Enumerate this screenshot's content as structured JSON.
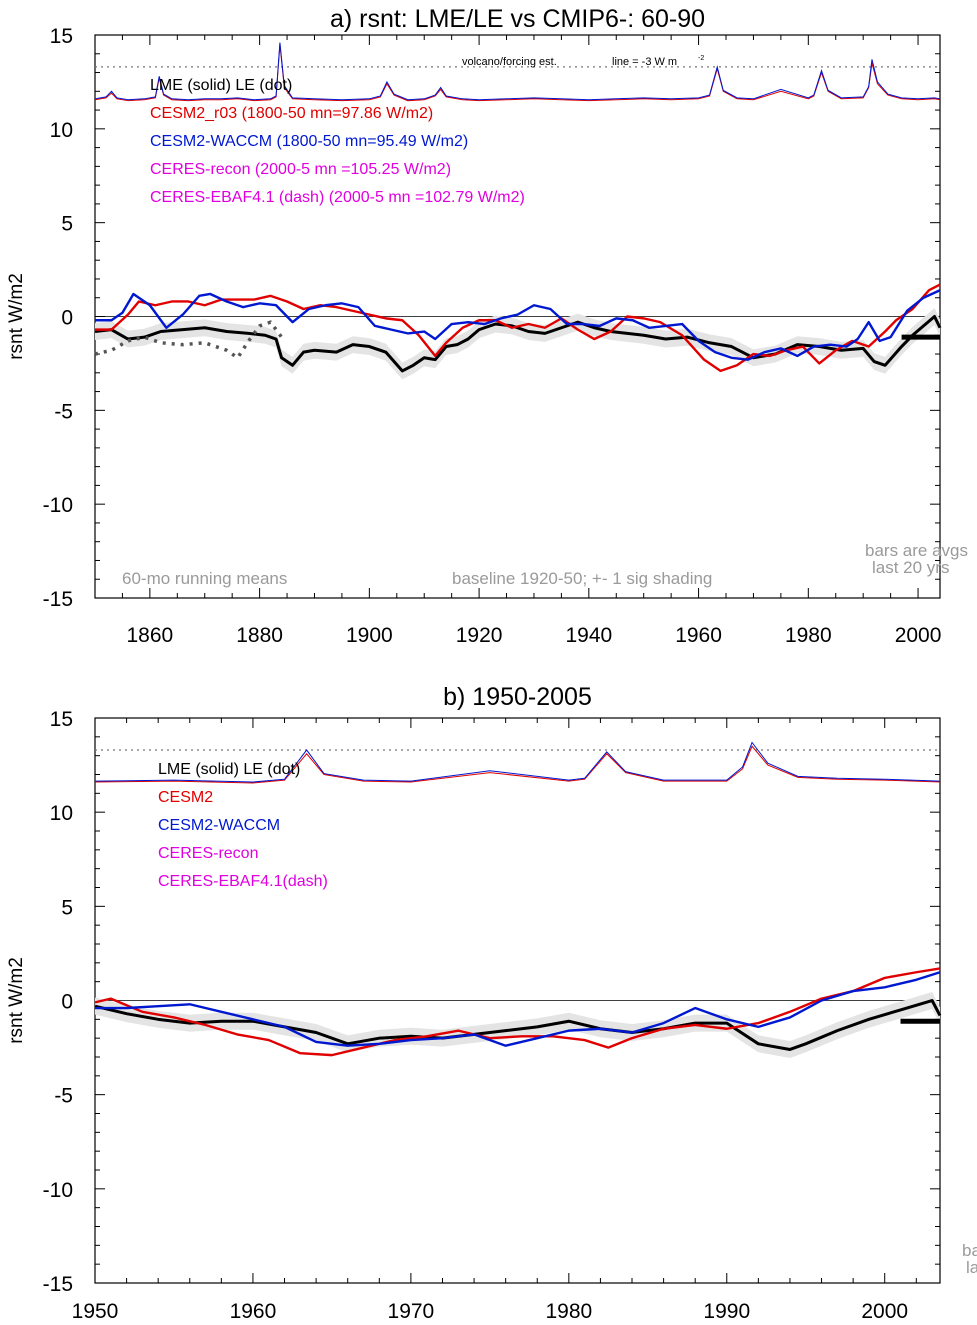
{
  "chart_data": [
    {
      "type": "line",
      "title": "a) rsnt: LME/LE vs CMIP6-: 60-90",
      "ylabel": "rsnt W/m2",
      "xlim": [
        1850,
        2004
      ],
      "ylim": [
        -15,
        15
      ],
      "x_ticks": [
        1860,
        1880,
        1900,
        1920,
        1940,
        1960,
        1980,
        2000
      ],
      "y_ticks": [
        15,
        10,
        5,
        0,
        -5,
        -10,
        -15
      ],
      "grid": false,
      "legend": [
        {
          "text": "LME (solid)    LE (dot)",
          "color": "#000000"
        },
        {
          "text": "CESM2_r03 (1800-50 mn=97.86 W/m2)",
          "color": "#e00000"
        },
        {
          "text": "CESM2-WACCM (1800-50 mn=95.49 W/m2)",
          "color": "#0018d0"
        },
        {
          "text": "CERES-recon (2000-5 mn =105.25 W/m2)",
          "color": "#e000e0"
        },
        {
          "text": "CERES-EBAF4.1 (dash) (2000-5 mn =102.79 W/m2)",
          "color": "#e000e0"
        }
      ],
      "annotations": {
        "volcano": "volcano/forcing est.",
        "line_note": "line = -3 W m",
        "line_note_sup": "-2",
        "running": "60-mo running means",
        "baseline": "baseline 1920-50; +- 1 sig shading",
        "bars1": "bars are avgs",
        "bars2": "last 20 yrs"
      },
      "reference_levels": {
        "zero": 0,
        "volcano_line": 13.3
      },
      "bar": {
        "x": [
          1997,
          2004
        ],
        "y": -1.1
      },
      "series": [
        {
          "name": "LME (solid)",
          "color": "#000000",
          "x": [
            1850,
            1853,
            1856,
            1859,
            1862,
            1866,
            1870,
            1874,
            1878,
            1881,
            1883,
            1884,
            1886,
            1888,
            1890,
            1894,
            1897,
            1900,
            1903,
            1906,
            1908,
            1910,
            1912,
            1914,
            1916,
            1918,
            1920,
            1923,
            1926,
            1929,
            1932,
            1935,
            1938,
            1941,
            1944,
            1947,
            1950,
            1954,
            1958,
            1962,
            1966,
            1970,
            1974,
            1978,
            1982,
            1986,
            1990,
            1992,
            1994,
            1997,
            1999,
            2001,
            2003,
            2004
          ],
          "y": [
            -0.8,
            -0.7,
            -1.2,
            -1.1,
            -0.8,
            -0.7,
            -0.6,
            -0.8,
            -0.9,
            -1.0,
            -1.2,
            -2.2,
            -2.6,
            -1.9,
            -1.8,
            -1.9,
            -1.5,
            -1.6,
            -1.9,
            -2.9,
            -2.6,
            -2.2,
            -2.3,
            -1.6,
            -1.5,
            -1.2,
            -0.7,
            -0.4,
            -0.5,
            -0.8,
            -0.9,
            -0.6,
            -0.3,
            -0.6,
            -0.8,
            -0.9,
            -1.0,
            -1.2,
            -1.1,
            -1.4,
            -1.6,
            -2.2,
            -2.0,
            -1.5,
            -1.6,
            -1.8,
            -1.7,
            -2.4,
            -2.6,
            -1.6,
            -1.0,
            -0.5,
            0.0,
            -0.6
          ]
        },
        {
          "name": "LE (dot)",
          "color": "#555555",
          "x": [
            1850,
            1853,
            1856,
            1859,
            1862,
            1866,
            1870,
            1874,
            1876,
            1878,
            1880,
            1882,
            1884
          ],
          "y": [
            -2.0,
            -1.8,
            -1.3,
            -1.1,
            -1.4,
            -1.5,
            -1.4,
            -1.8,
            -2.2,
            -1.3,
            -0.5,
            -0.3,
            -1.1
          ]
        },
        {
          "name": "CESM2_r03",
          "color": "#e00000",
          "x": [
            1850,
            1853,
            1856,
            1858,
            1861,
            1864,
            1867,
            1870,
            1873,
            1876,
            1879,
            1882,
            1885,
            1888,
            1891,
            1894,
            1897,
            1900,
            1903,
            1906,
            1909,
            1912,
            1914,
            1917,
            1920,
            1923,
            1926,
            1929,
            1932,
            1935,
            1938,
            1941,
            1944,
            1947,
            1950,
            1953,
            1957,
            1961,
            1964,
            1967,
            1970,
            1973,
            1976,
            1979,
            1982,
            1985,
            1988,
            1991,
            1994,
            1996,
            1999,
            2002,
            2004
          ],
          "y": [
            -0.7,
            -0.7,
            0.1,
            0.8,
            0.6,
            0.8,
            0.8,
            0.6,
            0.9,
            0.9,
            0.9,
            1.1,
            0.8,
            0.4,
            0.6,
            0.5,
            0.3,
            0.1,
            -0.1,
            -0.2,
            -1.0,
            -2.1,
            -1.4,
            -0.6,
            -0.2,
            -0.2,
            -0.6,
            -0.4,
            -0.6,
            -0.1,
            -0.7,
            -1.2,
            -0.8,
            0.0,
            -0.1,
            -0.3,
            -1.0,
            -2.3,
            -2.9,
            -2.6,
            -2.0,
            -2.1,
            -1.8,
            -1.6,
            -2.5,
            -1.8,
            -1.3,
            -1.6,
            -0.8,
            -0.2,
            0.4,
            1.4,
            1.7
          ]
        },
        {
          "name": "CESM2-WACCM",
          "color": "#0018d0",
          "x": [
            1850,
            1853,
            1855,
            1857,
            1860,
            1863,
            1866,
            1869,
            1871,
            1874,
            1877,
            1880,
            1883,
            1886,
            1889,
            1892,
            1895,
            1898,
            1901,
            1904,
            1907,
            1910,
            1912,
            1915,
            1918,
            1921,
            1924,
            1927,
            1930,
            1933,
            1936,
            1939,
            1942,
            1945,
            1948,
            1951,
            1954,
            1957,
            1960,
            1963,
            1966,
            1969,
            1972,
            1975,
            1978,
            1981,
            1984,
            1987,
            1989,
            1991,
            1993,
            1995,
            1998,
            2001,
            2004
          ],
          "y": [
            -0.2,
            -0.2,
            0.2,
            1.2,
            0.6,
            -0.6,
            0.1,
            1.1,
            1.2,
            0.8,
            0.5,
            0.7,
            0.6,
            -0.3,
            0.4,
            0.6,
            0.7,
            0.5,
            -0.5,
            -0.7,
            -0.9,
            -0.8,
            -1.2,
            -0.4,
            -0.3,
            -0.4,
            -0.1,
            0.1,
            0.6,
            0.4,
            -0.4,
            -0.4,
            -0.5,
            -0.1,
            -0.2,
            -0.6,
            -0.5,
            -0.4,
            -1.3,
            -1.9,
            -2.2,
            -2.3,
            -1.9,
            -1.7,
            -2.1,
            -1.6,
            -1.5,
            -1.6,
            -1.2,
            -0.3,
            -1.3,
            -1.1,
            0.3,
            1.0,
            1.4
          ]
        }
      ],
      "forcing_series": [
        {
          "color": "#e00000",
          "x": [
            1850,
            1852,
            1853,
            1854,
            1856,
            1859,
            1861,
            1861.7,
            1862.5,
            1864,
            1867,
            1870,
            1873,
            1876,
            1879,
            1882,
            1883,
            1883.7,
            1884.5,
            1886,
            1890,
            1895,
            1900,
            1902,
            1903.2,
            1904.5,
            1907,
            1910,
            1912,
            1913,
            1914,
            1917,
            1920,
            1925,
            1930,
            1935,
            1940,
            1945,
            1950,
            1955,
            1960,
            1962,
            1963.4,
            1964.5,
            1967,
            1970,
            1975,
            1980,
            1981,
            1982.4,
            1983.6,
            1986,
            1990,
            1991,
            1991.6,
            1992.6,
            1994.5,
            1997,
            2000,
            2003,
            2004
          ],
          "y": [
            11.55,
            11.65,
            11.9,
            11.6,
            11.5,
            11.55,
            11.65,
            12.7,
            11.8,
            11.55,
            11.5,
            11.55,
            11.55,
            11.6,
            11.5,
            11.55,
            11.7,
            14.5,
            12.2,
            11.6,
            11.55,
            11.5,
            11.55,
            11.7,
            12.4,
            11.8,
            11.5,
            11.55,
            11.75,
            12.1,
            11.7,
            11.55,
            11.5,
            11.55,
            11.6,
            11.55,
            11.5,
            11.55,
            11.6,
            11.55,
            11.6,
            11.75,
            13.2,
            12.0,
            11.6,
            11.55,
            12.0,
            11.6,
            11.75,
            13.0,
            12.0,
            11.6,
            11.65,
            12.2,
            13.5,
            12.4,
            11.8,
            11.6,
            11.55,
            11.6,
            11.55
          ]
        },
        {
          "color": "#0018d0",
          "x": [
            1850,
            1852,
            1853,
            1854,
            1856,
            1859,
            1861,
            1861.7,
            1862.5,
            1864,
            1867,
            1870,
            1873,
            1876,
            1879,
            1882,
            1883,
            1883.7,
            1884.5,
            1886,
            1890,
            1895,
            1900,
            1902,
            1903.2,
            1904.5,
            1907,
            1910,
            1912,
            1913,
            1914,
            1917,
            1920,
            1925,
            1930,
            1935,
            1940,
            1945,
            1950,
            1955,
            1960,
            1962,
            1963.4,
            1964.5,
            1967,
            1970,
            1975,
            1980,
            1981,
            1982.4,
            1983.6,
            1986,
            1990,
            1991,
            1991.6,
            1992.6,
            1994.5,
            1997,
            2000,
            2003,
            2004
          ],
          "y": [
            11.6,
            11.7,
            12.0,
            11.65,
            11.55,
            11.6,
            11.7,
            12.8,
            11.85,
            11.6,
            11.55,
            11.6,
            11.6,
            11.65,
            11.55,
            11.6,
            11.75,
            14.6,
            12.3,
            11.65,
            11.6,
            11.55,
            11.6,
            11.75,
            12.5,
            11.85,
            11.55,
            11.6,
            11.8,
            12.2,
            11.75,
            11.6,
            11.55,
            11.6,
            11.65,
            11.6,
            11.55,
            11.6,
            11.65,
            11.6,
            11.65,
            11.8,
            13.3,
            12.05,
            11.65,
            11.6,
            12.1,
            11.65,
            11.8,
            13.1,
            12.05,
            11.65,
            11.7,
            12.25,
            13.7,
            12.5,
            11.85,
            11.65,
            11.6,
            11.65,
            11.6
          ]
        }
      ]
    },
    {
      "type": "line",
      "title": "b) 1950-2005",
      "ylabel": "rsnt W/m2",
      "xlim": [
        1950,
        2003.5
      ],
      "ylim": [
        -15,
        15
      ],
      "x_ticks": [
        1950,
        1960,
        1970,
        1980,
        1990,
        2000
      ],
      "y_ticks": [
        15,
        10,
        5,
        0,
        -5,
        -10,
        -15
      ],
      "grid": false,
      "legend": [
        {
          "text": "LME (solid)       LE (dot)",
          "color": "#000000"
        },
        {
          "text": "CESM2",
          "color": "#e00000"
        },
        {
          "text": "CESM2-WACCM",
          "color": "#0018d0"
        },
        {
          "text": "CERES-recon",
          "color": "#e000e0"
        },
        {
          "text": "CERES-EBAF4.1(dash)",
          "color": "#e000e0"
        }
      ],
      "annotations": {
        "bars1": "ba",
        "bars2": "la"
      },
      "reference_levels": {
        "zero": 0,
        "volcano_line": 13.3
      },
      "bar": {
        "x": [
          2001,
          2003.5
        ],
        "y": -1.1
      },
      "series": [
        {
          "name": "LME (solid)",
          "color": "#000000",
          "x": [
            1950,
            1952,
            1954,
            1956,
            1958,
            1960,
            1962,
            1964,
            1966,
            1968,
            1970,
            1972,
            1974,
            1976,
            1978,
            1980,
            1982,
            1984,
            1986,
            1988,
            1990,
            1992,
            1994,
            1995,
            1997,
            1999,
            2001,
            2003,
            2003.5
          ],
          "y": [
            -0.3,
            -0.7,
            -1.0,
            -1.2,
            -1.1,
            -1.1,
            -1.4,
            -1.7,
            -2.3,
            -2.0,
            -1.9,
            -2.0,
            -1.8,
            -1.6,
            -1.4,
            -1.1,
            -1.5,
            -1.7,
            -1.5,
            -1.2,
            -1.2,
            -2.3,
            -2.6,
            -2.3,
            -1.6,
            -1.0,
            -0.5,
            -0.0,
            -0.8
          ]
        },
        {
          "name": "CESM2",
          "color": "#e00000",
          "x": [
            1950,
            1951,
            1953,
            1955,
            1957,
            1959,
            1961,
            1963,
            1965,
            1967,
            1969,
            1971,
            1973,
            1975,
            1977,
            1979,
            1981,
            1982.5,
            1984,
            1986,
            1988,
            1990,
            1992,
            1994,
            1996,
            1998,
            2000,
            2002,
            2003.5
          ],
          "y": [
            -0.1,
            0.1,
            -0.6,
            -0.9,
            -1.3,
            -1.8,
            -2.1,
            -2.8,
            -2.9,
            -2.5,
            -2.1,
            -1.9,
            -1.6,
            -2.0,
            -1.9,
            -1.9,
            -2.1,
            -2.5,
            -2.0,
            -1.5,
            -1.3,
            -1.5,
            -1.2,
            -0.6,
            0.1,
            0.5,
            1.2,
            1.5,
            1.7
          ]
        },
        {
          "name": "CESM2-WACCM",
          "color": "#0018d0",
          "x": [
            1950,
            1952,
            1954,
            1956,
            1958,
            1960,
            1962,
            1964,
            1966,
            1968,
            1970,
            1972,
            1974,
            1976,
            1978,
            1980,
            1982,
            1984,
            1986,
            1988,
            1990,
            1992,
            1994,
            1996,
            1998,
            2000,
            2002,
            2003.5
          ],
          "y": [
            -0.4,
            -0.4,
            -0.3,
            -0.2,
            -0.6,
            -1.0,
            -1.4,
            -2.2,
            -2.4,
            -2.3,
            -2.1,
            -2.0,
            -1.8,
            -2.4,
            -2.0,
            -1.6,
            -1.5,
            -1.7,
            -1.2,
            -0.4,
            -1.0,
            -1.4,
            -0.9,
            0.0,
            0.5,
            0.7,
            1.1,
            1.5
          ]
        }
      ],
      "forcing_series": [
        {
          "color": "#e00000",
          "x": [
            1950,
            1955,
            1960,
            1962,
            1963.4,
            1964.5,
            1967,
            1970,
            1975,
            1980,
            1981,
            1982.4,
            1983.6,
            1986,
            1990,
            1991,
            1991.6,
            1992.6,
            1994.5,
            1997,
            2000,
            2003.5
          ],
          "y": [
            11.6,
            11.65,
            11.55,
            11.7,
            13.1,
            12.0,
            11.65,
            11.6,
            12.1,
            11.65,
            11.75,
            13.1,
            12.1,
            11.65,
            11.65,
            12.3,
            13.5,
            12.5,
            11.85,
            11.75,
            11.7,
            11.6
          ]
        },
        {
          "color": "#0018d0",
          "x": [
            1950,
            1955,
            1960,
            1962,
            1963.4,
            1964.5,
            1967,
            1970,
            1975,
            1980,
            1981,
            1982.4,
            1983.6,
            1986,
            1990,
            1991,
            1991.6,
            1992.6,
            1994.5,
            1997,
            2000,
            2003.5
          ],
          "y": [
            11.65,
            11.7,
            11.6,
            11.75,
            13.3,
            12.05,
            11.7,
            11.65,
            12.2,
            11.7,
            11.8,
            13.2,
            12.15,
            11.7,
            11.7,
            12.4,
            13.7,
            12.6,
            11.9,
            11.8,
            11.75,
            11.65
          ]
        }
      ]
    }
  ]
}
